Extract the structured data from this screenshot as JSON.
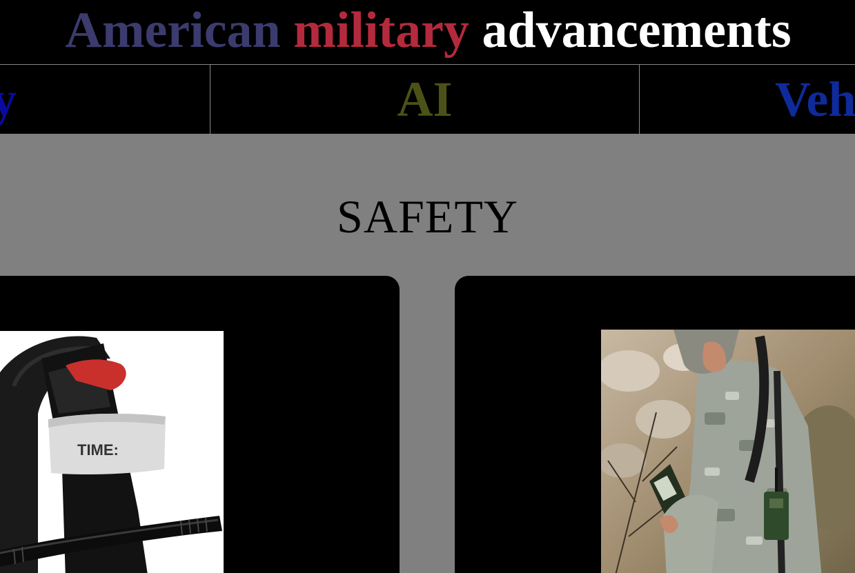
{
  "header": {
    "title_part1": "American",
    "title_part2": "military",
    "title_part3": "advancements",
    "colors": {
      "part1": "#3b3b6e",
      "part2": "#b42a3d",
      "part3": "#ffffff"
    }
  },
  "nav": {
    "tabs": [
      {
        "label": "fety",
        "color": "#0a0aa0"
      },
      {
        "label": "AI",
        "color": "#4c5217"
      },
      {
        "label": "Veh",
        "color": "#0f2a9a"
      }
    ]
  },
  "section": {
    "title": "SAFETY",
    "background": "#808080"
  },
  "cards": [
    {
      "image": "tourniquet-photo",
      "strap_label": "TIME:"
    },
    {
      "image": "soldier-with-radio-photo"
    }
  ]
}
